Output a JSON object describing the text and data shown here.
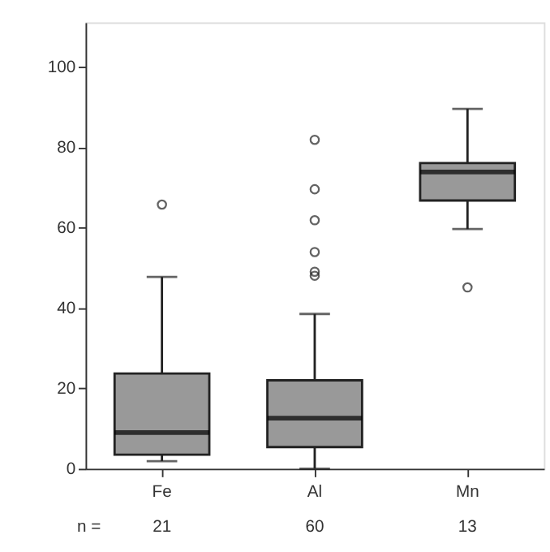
{
  "chart_data": {
    "type": "box",
    "categories": [
      "Fe",
      "Al",
      "Mn"
    ],
    "boxes": [
      {
        "low": 1.9,
        "q1": 3.5,
        "median": 9.0,
        "q3": 23.7,
        "high": 47.7,
        "outliers": [
          65.7
        ]
      },
      {
        "low": 0,
        "q1": 5.4,
        "median": 12.6,
        "q3": 22,
        "high": 38.5,
        "outliers": [
          48,
          49,
          53.9,
          61.8,
          69.5,
          81.8
        ]
      },
      {
        "low": 59.6,
        "q1": 66.7,
        "median": 73.8,
        "q3": 76,
        "high": 89.5,
        "outliers": [
          45.1
        ]
      }
    ],
    "color": "#999999",
    "ylim": [
      0,
      111
    ],
    "yticks": [
      0,
      20,
      40,
      60,
      80,
      100
    ],
    "grid": false,
    "annotations": [
      "n =",
      "21",
      "60",
      "13"
    ]
  }
}
